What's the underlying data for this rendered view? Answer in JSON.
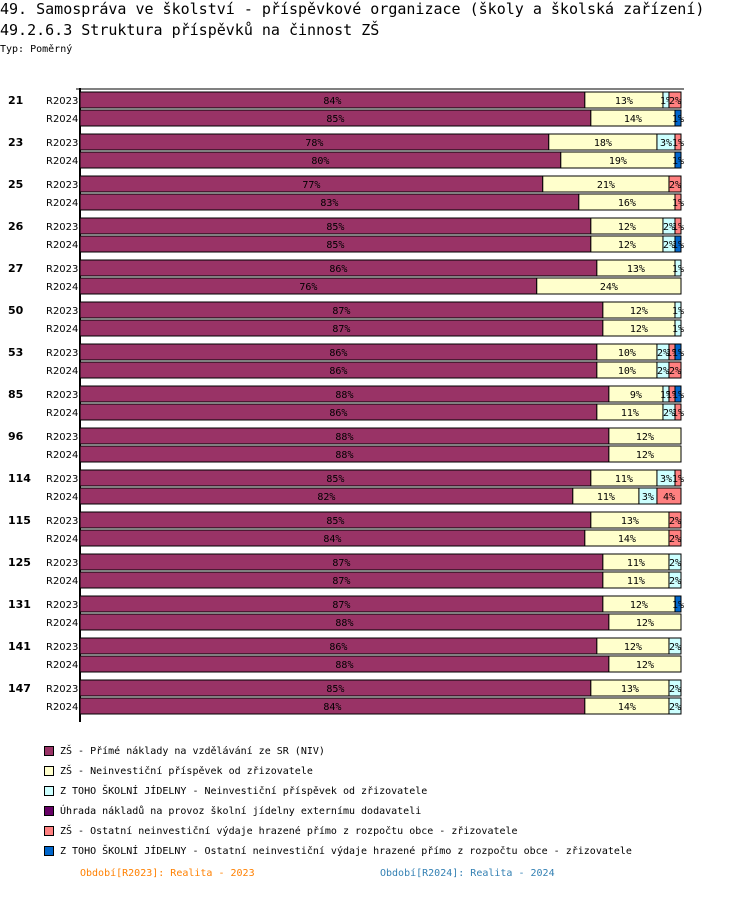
{
  "header": {
    "title": "49. Samospráva ve školství - příspěvkové organizace (školy a školská zařízení)",
    "subtitle": "49.2.6.3 Struktura příspěvků na činnost ZŠ",
    "type_label": "Typ: Poměrný"
  },
  "chart_data": {
    "type": "bar",
    "orientation": "horizontal",
    "stacked": true,
    "normalized": true,
    "title": "49.2.6.3 Struktura příspěvků na činnost ZŠ",
    "xlabel": "",
    "ylabel": "",
    "xlim": [
      0,
      100
    ],
    "legend_position": "bottom",
    "series": [
      {
        "name": "ZŠ - Přímé náklady na vzdělávání ze SR (NIV)",
        "color": "#993366"
      },
      {
        "name": "ZŠ - Neinvestiční příspěvek od zřizovatele",
        "color": "#ffffcc"
      },
      {
        "name": "Z TOHO ŠKOLNÍ JÍDELNY - Neinvestiční příspěvek od zřizovatele",
        "color": "#ccffff"
      },
      {
        "name": "Úhrada nákladů na provoz školní jídelny externímu dodavateli",
        "color": "#660066"
      },
      {
        "name": "ZŠ - Ostatní neinvestiční výdaje hrazené přímo z rozpočtu obce - zřizovatele",
        "color": "#ff8080"
      },
      {
        "name": "Z TOHO ŠKOLNÍ JÍDELNY - Ostatní neinvestiční výdaje hrazené přímo z rozpočtu obce - zřizovatele",
        "color": "#0066cc"
      }
    ],
    "groups": [
      {
        "label": "21",
        "rows": [
          {
            "period": "R2023",
            "values": [
              84,
              13,
              1,
              0,
              2,
              0
            ]
          },
          {
            "period": "R2024",
            "values": [
              85,
              14,
              0,
              0,
              0,
              1
            ]
          }
        ]
      },
      {
        "label": "23",
        "rows": [
          {
            "period": "R2023",
            "values": [
              78,
              18,
              3,
              0,
              1,
              0
            ]
          },
          {
            "period": "R2024",
            "values": [
              80,
              19,
              0,
              0,
              0,
              1
            ]
          }
        ]
      },
      {
        "label": "25",
        "rows": [
          {
            "period": "R2023",
            "values": [
              77,
              21,
              0,
              0,
              2,
              0
            ]
          },
          {
            "period": "R2024",
            "values": [
              83,
              16,
              0,
              0,
              1,
              0
            ]
          }
        ]
      },
      {
        "label": "26",
        "rows": [
          {
            "period": "R2023",
            "values": [
              85,
              12,
              2,
              0,
              1,
              0
            ]
          },
          {
            "period": "R2024",
            "values": [
              85,
              12,
              2,
              0,
              0,
              1
            ]
          }
        ]
      },
      {
        "label": "27",
        "rows": [
          {
            "period": "R2023",
            "values": [
              86,
              13,
              1,
              0,
              0,
              0
            ]
          },
          {
            "period": "R2024",
            "values": [
              76,
              24,
              0,
              0,
              0,
              0
            ]
          }
        ]
      },
      {
        "label": "50",
        "rows": [
          {
            "period": "R2023",
            "values": [
              87,
              12,
              1,
              0,
              0,
              0
            ]
          },
          {
            "period": "R2024",
            "values": [
              87,
              12,
              1,
              0,
              0,
              0
            ]
          }
        ]
      },
      {
        "label": "53",
        "rows": [
          {
            "period": "R2023",
            "values": [
              86,
              10,
              2,
              0,
              1,
              1
            ]
          },
          {
            "period": "R2024",
            "values": [
              86,
              10,
              2,
              0,
              2,
              0
            ]
          }
        ]
      },
      {
        "label": "85",
        "rows": [
          {
            "period": "R2023",
            "values": [
              88,
              9,
              1,
              0,
              1,
              1
            ]
          },
          {
            "period": "R2024",
            "values": [
              86,
              11,
              2,
              0,
              1,
              0
            ]
          }
        ]
      },
      {
        "label": "96",
        "rows": [
          {
            "period": "R2023",
            "values": [
              88,
              12,
              0,
              0,
              0,
              0
            ]
          },
          {
            "period": "R2024",
            "values": [
              88,
              12,
              0,
              0,
              0,
              0
            ]
          }
        ]
      },
      {
        "label": "114",
        "rows": [
          {
            "period": "R2023",
            "values": [
              85,
              11,
              3,
              0,
              1,
              0
            ]
          },
          {
            "period": "R2024",
            "values": [
              82,
              11,
              3,
              0,
              4,
              0
            ]
          }
        ]
      },
      {
        "label": "115",
        "rows": [
          {
            "period": "R2023",
            "values": [
              85,
              13,
              0,
              0,
              2,
              0
            ]
          },
          {
            "period": "R2024",
            "values": [
              84,
              14,
              0,
              0,
              2,
              0
            ]
          }
        ]
      },
      {
        "label": "125",
        "rows": [
          {
            "period": "R2023",
            "values": [
              87,
              11,
              2,
              0,
              0,
              0
            ]
          },
          {
            "period": "R2024",
            "values": [
              87,
              11,
              2,
              0,
              0,
              0
            ]
          }
        ]
      },
      {
        "label": "131",
        "rows": [
          {
            "period": "R2023",
            "values": [
              87,
              12,
              0,
              0,
              0,
              1
            ]
          },
          {
            "period": "R2024",
            "values": [
              88,
              12,
              0,
              0,
              0,
              0
            ]
          }
        ]
      },
      {
        "label": "141",
        "rows": [
          {
            "period": "R2023",
            "values": [
              86,
              12,
              2,
              0,
              0,
              0
            ]
          },
          {
            "period": "R2024",
            "values": [
              88,
              12,
              0,
              0,
              0,
              0
            ]
          }
        ]
      },
      {
        "label": "147",
        "rows": [
          {
            "period": "R2023",
            "values": [
              85,
              13,
              2,
              0,
              0,
              0
            ]
          },
          {
            "period": "R2024",
            "values": [
              84,
              14,
              2,
              0,
              0,
              0
            ]
          }
        ]
      }
    ],
    "periods": [
      {
        "label": "Období[R2023]: Realita - 2023",
        "color": "#ff8000"
      },
      {
        "label": "Období[R2024]: Realita - 2024",
        "color": "#3380b3"
      }
    ]
  }
}
